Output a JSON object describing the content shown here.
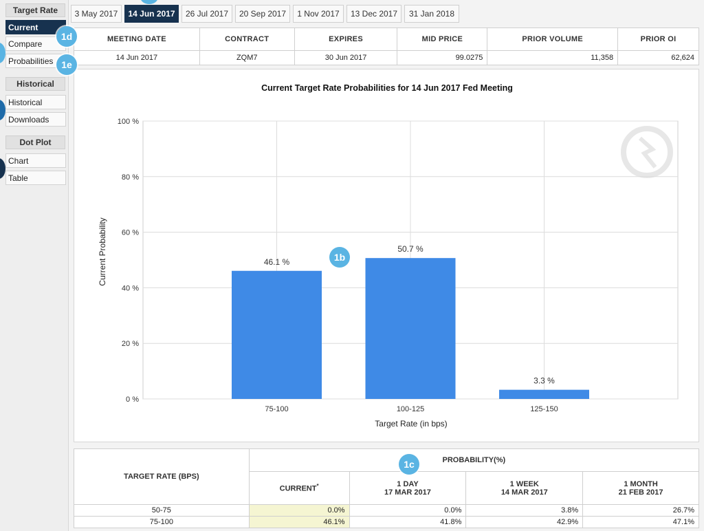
{
  "sidebar": {
    "groups": [
      {
        "heading": "Target Rate",
        "items": [
          {
            "label": "Current",
            "active": true
          },
          {
            "label": "Compare"
          },
          {
            "label": "Probabilities"
          }
        ]
      },
      {
        "heading": "Historical",
        "items": [
          {
            "label": "Historical"
          },
          {
            "label": "Downloads"
          }
        ]
      },
      {
        "heading": "Dot Plot",
        "items": [
          {
            "label": "Chart"
          },
          {
            "label": "Table"
          }
        ]
      }
    ]
  },
  "tabs": [
    "3 May 2017",
    "14 Jun 2017",
    "26 Jul 2017",
    "20 Sep 2017",
    "1 Nov 2017",
    "13 Dec 2017",
    "31 Jan 2018"
  ],
  "active_tab": "14 Jun 2017",
  "badges": [
    "1d",
    "1e",
    "1b",
    "1c"
  ],
  "meeting_info": {
    "headers": [
      "MEETING DATE",
      "CONTRACT",
      "EXPIRES",
      "MID PRICE",
      "PRIOR VOLUME",
      "PRIOR OI"
    ],
    "row": [
      "14 Jun 2017",
      "ZQM7",
      "30 Jun 2017",
      "99.0275",
      "11,358",
      "62,624"
    ]
  },
  "chart_data": {
    "type": "bar",
    "title": "Current Target Rate Probabilities for 14 Jun 2017 Fed Meeting",
    "xlabel": "Target Rate (in bps)",
    "ylabel": "Current Probability",
    "categories": [
      "75-100",
      "100-125",
      "125-150"
    ],
    "values": [
      46.1,
      50.7,
      3.3
    ],
    "value_labels": [
      "46.1 %",
      "50.7 %",
      "3.3 %"
    ],
    "ylim": [
      0,
      100
    ],
    "yticks": [
      0,
      20,
      40,
      60,
      80,
      100
    ],
    "ytick_labels": [
      "0 %",
      "20 %",
      "40 %",
      "60 %",
      "80 %",
      "100 %"
    ],
    "grid": true,
    "bar_color": "#3f8ae6"
  },
  "probability_table": {
    "col_header": "TARGET RATE (BPS)",
    "group_header": "PROBABILITY(%)",
    "columns": [
      {
        "line1": "CURRENT",
        "line2": "",
        "mark": "*"
      },
      {
        "line1": "1 DAY",
        "line2": "17 MAR 2017"
      },
      {
        "line1": "1 WEEK",
        "line2": "14 MAR 2017"
      },
      {
        "line1": "1 MONTH",
        "line2": "21 FEB 2017"
      }
    ],
    "rows": [
      {
        "rate": "50-75",
        "values": [
          "0.0%",
          "0.0%",
          "3.8%",
          "26.7%"
        ]
      },
      {
        "rate": "75-100",
        "values": [
          "46.1%",
          "41.8%",
          "42.9%",
          "47.1%"
        ]
      }
    ]
  },
  "colors": {
    "navy": "#17324f",
    "badge": "#5ab4e3",
    "bar": "#3f8ae6",
    "highlight": "#f5f5d2"
  }
}
